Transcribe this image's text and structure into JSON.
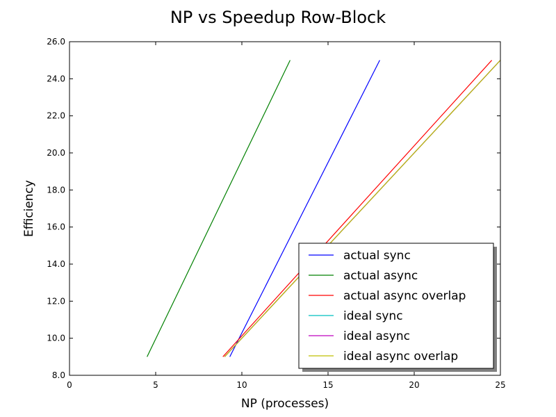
{
  "chart_data": {
    "type": "line",
    "title": "NP vs Speedup Row-Block",
    "xlabel": "NP (processes)",
    "ylabel": "Efficiency",
    "xlim": [
      0,
      25
    ],
    "ylim": [
      8.0,
      26.0
    ],
    "xticks": [
      0,
      5,
      10,
      15,
      20,
      25
    ],
    "xtick_labels": [
      "0",
      "5",
      "10",
      "15",
      "20",
      "25"
    ],
    "yticks": [
      8.0,
      10.0,
      12.0,
      14.0,
      16.0,
      18.0,
      20.0,
      22.0,
      24.0,
      26.0
    ],
    "ytick_labels": [
      "8.0",
      "10.0",
      "12.0",
      "14.0",
      "16.0",
      "18.0",
      "20.0",
      "22.0",
      "24.0",
      "26.0"
    ],
    "grid": false,
    "legend_position": "lower right",
    "series": [
      {
        "name": "actual sync",
        "color": "#0000ff",
        "x": [
          9.3,
          18.0
        ],
        "y": [
          9.0,
          25.0
        ]
      },
      {
        "name": "actual async",
        "color": "#008000",
        "x": [
          4.5,
          12.8
        ],
        "y": [
          9.0,
          25.0
        ]
      },
      {
        "name": "actual async overlap",
        "color": "#ff0000",
        "x": [
          8.9,
          24.5
        ],
        "y": [
          9.0,
          25.0
        ]
      },
      {
        "name": "ideal sync",
        "color": "#00bfbf",
        "x": [
          9.0,
          25.0
        ],
        "y": [
          9.0,
          25.0
        ]
      },
      {
        "name": "ideal async",
        "color": "#bf00bf",
        "x": [
          9.0,
          25.0
        ],
        "y": [
          9.0,
          25.0
        ]
      },
      {
        "name": "ideal async overlap",
        "color": "#bfbf00",
        "x": [
          9.0,
          25.0
        ],
        "y": [
          9.0,
          25.0
        ]
      }
    ]
  }
}
